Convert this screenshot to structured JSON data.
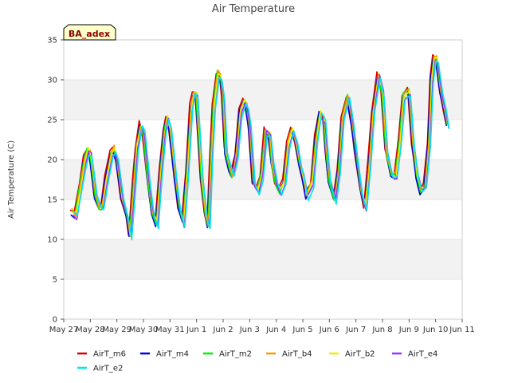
{
  "chart_data": {
    "type": "line",
    "title": "Air Temperature",
    "xlabel": "",
    "ylabel": "Air Temperature (C)",
    "badge": "BA_adex",
    "ylim": [
      0,
      35
    ],
    "xlim": [
      0,
      15
    ],
    "yticks": [
      0,
      5,
      10,
      15,
      20,
      25,
      30,
      35
    ],
    "xticks": [
      {
        "pos": 0,
        "label": "May 27"
      },
      {
        "pos": 1,
        "label": "May 28"
      },
      {
        "pos": 2,
        "label": "May 29"
      },
      {
        "pos": 3,
        "label": "May 30"
      },
      {
        "pos": 4,
        "label": "May 31"
      },
      {
        "pos": 5,
        "label": "Jun 1"
      },
      {
        "pos": 6,
        "label": "Jun 2"
      },
      {
        "pos": 7,
        "label": "Jun 3"
      },
      {
        "pos": 8,
        "label": "Jun 4"
      },
      {
        "pos": 9,
        "label": "Jun 5"
      },
      {
        "pos": 10,
        "label": "Jun 6"
      },
      {
        "pos": 11,
        "label": "Jun 7"
      },
      {
        "pos": 12,
        "label": "Jun 8"
      },
      {
        "pos": 13,
        "label": "Jun 9"
      },
      {
        "pos": 14,
        "label": "Jun 10"
      },
      {
        "pos": 15,
        "label": "Jun 11"
      }
    ],
    "grid": "alternating horizontal bands",
    "legend_position": "bottom",
    "series": [
      {
        "name": "AirT_m6",
        "color": "#dd0000",
        "offset": 0.25
      },
      {
        "name": "AirT_m4",
        "color": "#0000dd",
        "offset": -0.1
      },
      {
        "name": "AirT_m2",
        "color": "#00ee00",
        "offset": 0.05
      },
      {
        "name": "AirT_b4",
        "color": "#ff9900",
        "offset": 0.15
      },
      {
        "name": "AirT_b2",
        "color": "#eeee00",
        "offset": 0.1
      },
      {
        "name": "AirT_e4",
        "color": "#9933ff",
        "offset": -0.2
      },
      {
        "name": "AirT_e2",
        "color": "#00e5ee",
        "offset": -0.3
      }
    ],
    "base_x": [
      0.3,
      0.45,
      0.65,
      0.8,
      0.9,
      1.0,
      1.2,
      1.35,
      1.45,
      1.6,
      1.8,
      1.9,
      2.0,
      2.2,
      2.4,
      2.5,
      2.65,
      2.75,
      2.9,
      3.0,
      3.2,
      3.35,
      3.5,
      3.65,
      3.8,
      3.9,
      4.0,
      4.2,
      4.35,
      4.5,
      4.65,
      4.8,
      4.9,
      5.0,
      5.2,
      5.35,
      5.45,
      5.55,
      5.65,
      5.8,
      5.9,
      6.0,
      6.1,
      6.25,
      6.35,
      6.5,
      6.65,
      6.8,
      6.9,
      7.0,
      7.15,
      7.3,
      7.45,
      7.6,
      7.75,
      7.85,
      8.0,
      8.15,
      8.3,
      8.45,
      8.6,
      8.75,
      8.9,
      9.0,
      9.15,
      9.35,
      9.5,
      9.65,
      9.8,
      9.9,
      10.0,
      10.2,
      10.35,
      10.5,
      10.7,
      10.85,
      11.0,
      11.2,
      11.35,
      11.5,
      11.65,
      11.85,
      12.0,
      12.15,
      12.35,
      12.5,
      12.65,
      12.8,
      13.0,
      13.15,
      13.3,
      13.45,
      13.6,
      13.75,
      13.85,
      13.95,
      14.05,
      14.2,
      14.35,
      14.45
    ],
    "base_y": [
      13.5,
      13.0,
      17.0,
      20.0,
      21.2,
      20.8,
      15.5,
      14.0,
      14.0,
      17.5,
      21.0,
      21.3,
      20.0,
      15.0,
      12.5,
      10.5,
      17.0,
      21.5,
      24.3,
      23.5,
      17.0,
      13.5,
      12.0,
      18.5,
      23.5,
      25.0,
      24.0,
      18.0,
      14.0,
      12.0,
      18.5,
      26.5,
      28.5,
      28.0,
      17.5,
      13.0,
      11.5,
      20.0,
      26.5,
      30.8,
      30.5,
      28.0,
      21.0,
      19.0,
      18.0,
      20.5,
      26.0,
      27.5,
      26.5,
      24.0,
      17.0,
      16.0,
      18.0,
      23.5,
      23.0,
      19.5,
      17.0,
      16.0,
      17.5,
      22.0,
      23.8,
      22.0,
      19.0,
      18.0,
      15.5,
      17.0,
      22.5,
      25.8,
      25.0,
      21.0,
      17.5,
      15.0,
      18.5,
      25.0,
      27.8,
      25.0,
      21.0,
      16.0,
      14.0,
      19.0,
      26.0,
      30.5,
      28.5,
      21.0,
      18.0,
      18.0,
      22.0,
      28.0,
      28.5,
      22.0,
      18.0,
      16.0,
      16.5,
      22.0,
      30.0,
      33.0,
      32.5,
      28.5,
      26.0,
      24.0
    ]
  },
  "legend": [
    {
      "label": "AirT_m6",
      "color": "#dd0000"
    },
    {
      "label": "AirT_m4",
      "color": "#0000dd"
    },
    {
      "label": "AirT_m2",
      "color": "#00ee00"
    },
    {
      "label": "AirT_b4",
      "color": "#ff9900"
    },
    {
      "label": "AirT_b2",
      "color": "#eeee00"
    },
    {
      "label": "AirT_e4",
      "color": "#9933ff"
    },
    {
      "label": "AirT_e2",
      "color": "#00e5ee"
    }
  ]
}
